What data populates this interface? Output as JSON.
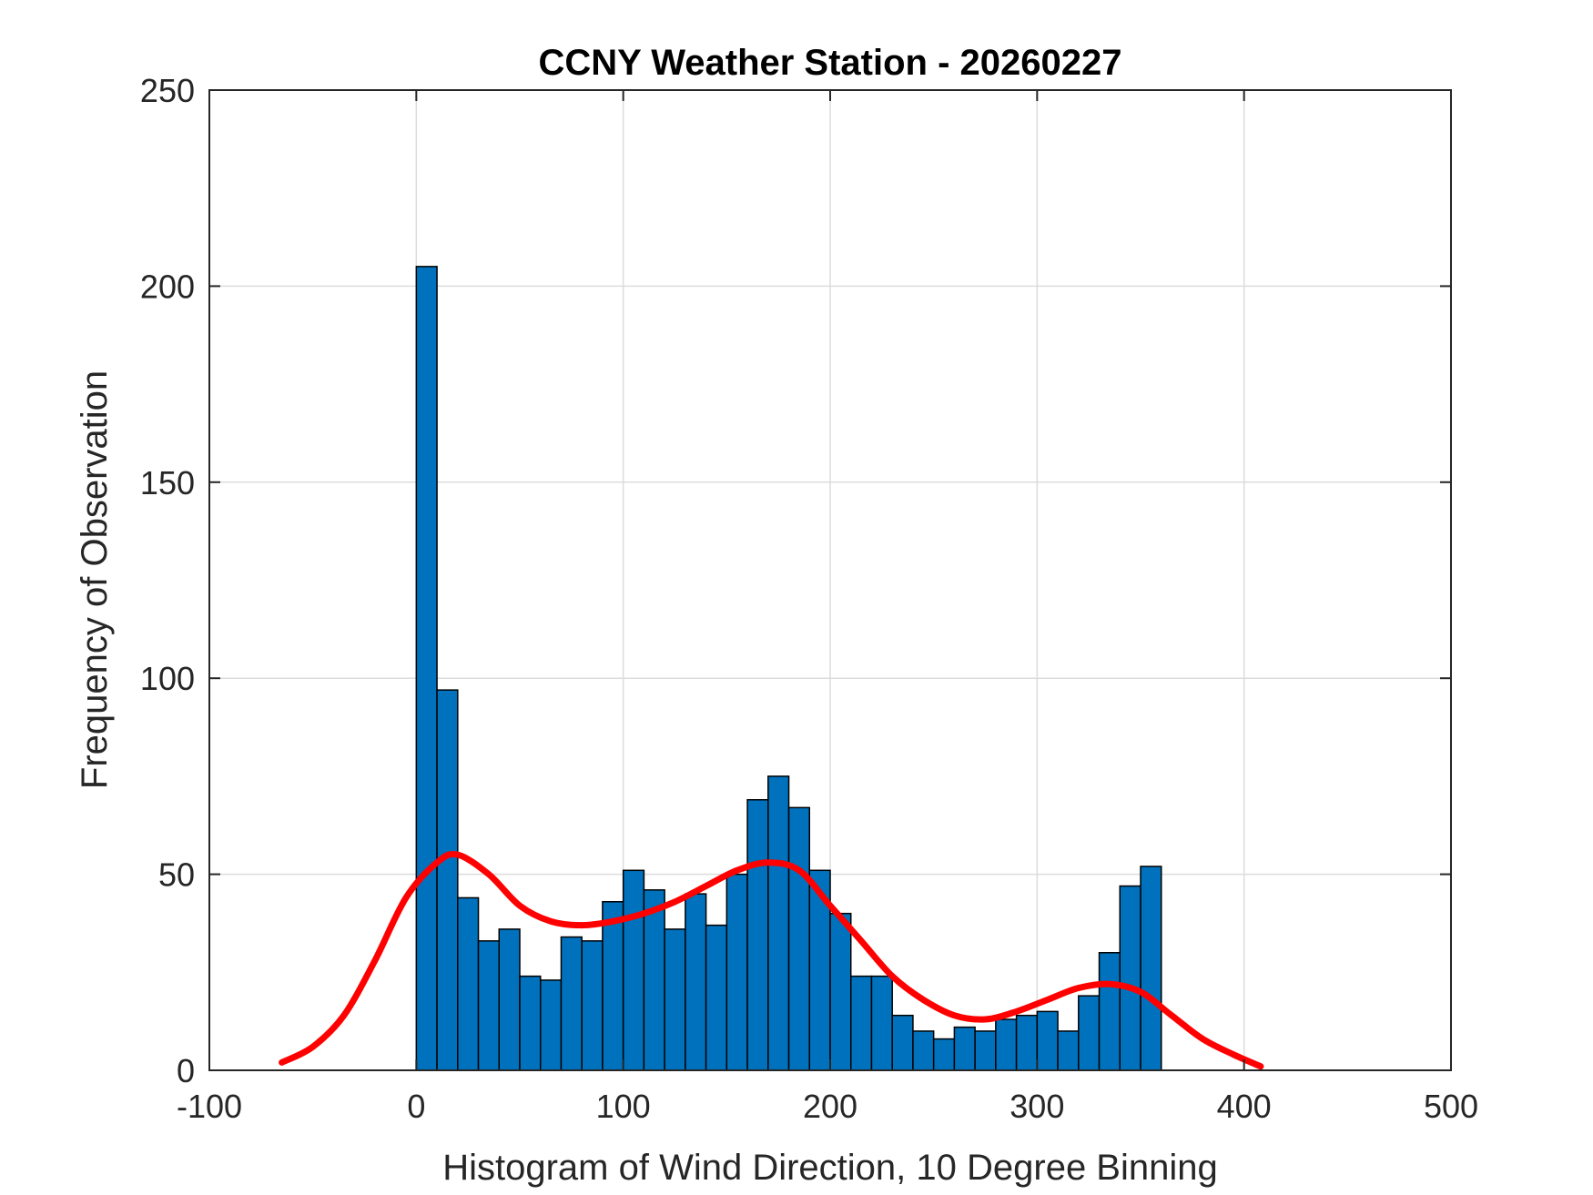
{
  "chart_data": {
    "type": "bar",
    "title": "CCNY Weather Station - 20260227",
    "xlabel": "Histogram of Wind Direction, 10 Degree Binning",
    "ylabel": "Frequency of Observation",
    "xlim": [
      -100,
      500
    ],
    "ylim": [
      0,
      250
    ],
    "xticks": [
      -100,
      0,
      100,
      200,
      300,
      400,
      500
    ],
    "yticks": [
      0,
      50,
      100,
      150,
      200,
      250
    ],
    "grid": true,
    "bin_width": 10,
    "bin_edges_start": [
      0,
      10,
      20,
      30,
      40,
      50,
      60,
      70,
      80,
      90,
      100,
      110,
      120,
      130,
      140,
      150,
      160,
      170,
      180,
      190,
      200,
      210,
      220,
      230,
      240,
      250,
      260,
      270,
      280,
      290,
      300,
      310,
      320,
      330,
      340,
      350
    ],
    "values": [
      205,
      97,
      44,
      33,
      36,
      24,
      23,
      34,
      33,
      43,
      51,
      46,
      36,
      45,
      37,
      50,
      69,
      75,
      67,
      51,
      40,
      24,
      24,
      14,
      10,
      8,
      11,
      10,
      13,
      14,
      15,
      10,
      19,
      30,
      47,
      52
    ],
    "bar_color": "#0072BD",
    "curve_color": "#FF0000",
    "fit_curve": {
      "name": "density fit",
      "x": [
        -65,
        -50,
        -35,
        -20,
        -5,
        10,
        20,
        35,
        50,
        65,
        80,
        95,
        110,
        125,
        140,
        155,
        170,
        185,
        200,
        215,
        230,
        245,
        260,
        275,
        290,
        305,
        320,
        335,
        350,
        365,
        380,
        395,
        408
      ],
      "y": [
        2,
        6,
        14,
        28,
        44,
        53,
        55,
        50,
        42,
        38,
        37,
        38,
        40,
        43,
        47,
        51,
        53,
        51,
        42,
        33,
        24,
        18,
        14,
        13,
        15,
        18,
        21,
        22,
        20,
        14,
        8,
        4,
        1
      ]
    }
  }
}
